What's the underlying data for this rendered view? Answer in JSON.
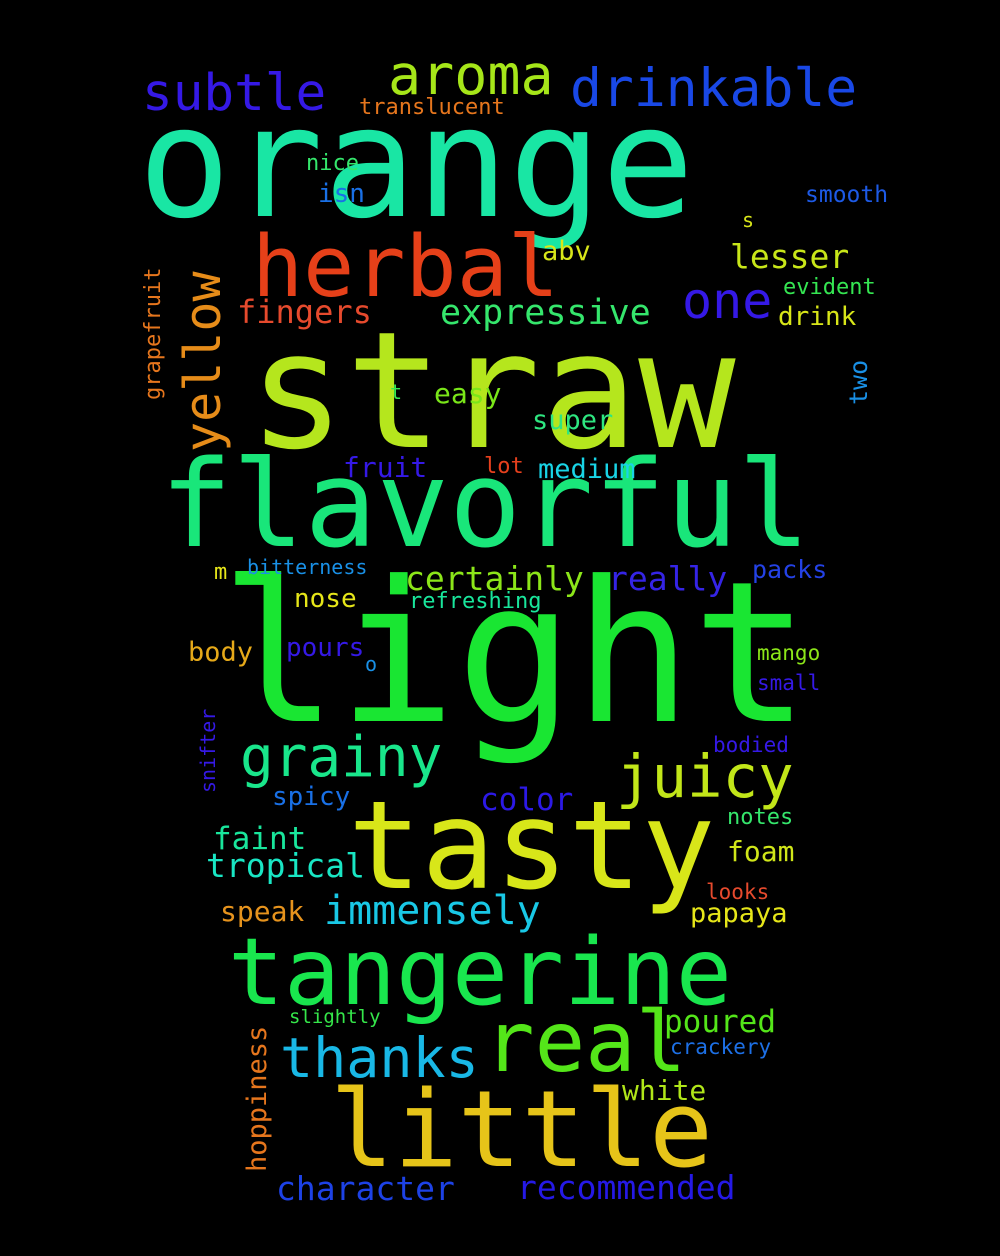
{
  "background": "#000000",
  "words": [
    {
      "text": "straw",
      "color": "#b5e61d"
    },
    {
      "text": "orange",
      "color": "#19e6a4"
    },
    {
      "text": "light",
      "color": "#19e632"
    },
    {
      "text": "flavorful",
      "color": "#19e67a"
    },
    {
      "text": "tasty",
      "color": "#d8e619"
    },
    {
      "text": "tangerine",
      "color": "#19e64e"
    },
    {
      "text": "little",
      "color": "#e6c419"
    },
    {
      "text": "herbal",
      "color": "#e64019"
    },
    {
      "text": "real",
      "color": "#54e619"
    },
    {
      "text": "aroma",
      "color": "#a6e619"
    },
    {
      "text": "drinkable",
      "color": "#1948e6"
    },
    {
      "text": "subtle",
      "color": "#3519e6"
    },
    {
      "text": "juicy",
      "color": "#c2e619"
    },
    {
      "text": "grainy",
      "color": "#19e68b"
    },
    {
      "text": "yellow",
      "color": "#e68c19"
    },
    {
      "text": "thanks",
      "color": "#19b8e6"
    },
    {
      "text": "one",
      "color": "#3519e6"
    },
    {
      "text": "immensely",
      "color": "#19c8e6"
    },
    {
      "text": "expressive",
      "color": "#35e66c"
    },
    {
      "text": "fingers",
      "color": "#e64a2d"
    },
    {
      "text": "lesser",
      "color": "#c8e619"
    },
    {
      "text": "certainly",
      "color": "#8ce619"
    },
    {
      "text": "really",
      "color": "#3524e6"
    },
    {
      "text": "tropical",
      "color": "#19e6c4"
    },
    {
      "text": "character",
      "color": "#1d42e6"
    },
    {
      "text": "recommended",
      "color": "#2519e6"
    },
    {
      "text": "poured",
      "color": "#54e619"
    },
    {
      "text": "color",
      "color": "#2c19e6"
    },
    {
      "text": "faint",
      "color": "#19e69c"
    },
    {
      "text": "foam",
      "color": "#d0e619"
    },
    {
      "text": "speak",
      "color": "#e6931d"
    },
    {
      "text": "papaya",
      "color": "#e6e619"
    },
    {
      "text": "white",
      "color": "#b0e619"
    },
    {
      "text": "fruit",
      "color": "#3519e6"
    },
    {
      "text": "medium",
      "color": "#19d4e6"
    },
    {
      "text": "easy",
      "color": "#7ae619"
    },
    {
      "text": "super",
      "color": "#2ee680"
    },
    {
      "text": "drink",
      "color": "#d8e619"
    },
    {
      "text": "abv",
      "color": "#d8e619"
    },
    {
      "text": "nose",
      "color": "#e6e619"
    },
    {
      "text": "body",
      "color": "#e6a919"
    },
    {
      "text": "pours",
      "color": "#3519e6"
    },
    {
      "text": "spicy",
      "color": "#1970e6"
    },
    {
      "text": "packs",
      "color": "#2442e6"
    },
    {
      "text": "isn",
      "color": "#1970e6"
    },
    {
      "text": "nice",
      "color": "#35e66c"
    },
    {
      "text": "smooth",
      "color": "#1d5ae6"
    },
    {
      "text": "evident",
      "color": "#35e652"
    },
    {
      "text": "translucent",
      "color": "#e6761d"
    },
    {
      "text": "refreshing",
      "color": "#19e69c"
    },
    {
      "text": "bitterness",
      "color": "#1990e6"
    },
    {
      "text": "mango",
      "color": "#8ce619"
    },
    {
      "text": "small",
      "color": "#3519e6"
    },
    {
      "text": "bodied",
      "color": "#3519e6"
    },
    {
      "text": "notes",
      "color": "#35e66c"
    },
    {
      "text": "looks",
      "color": "#e64a2d"
    },
    {
      "text": "crackery",
      "color": "#1d70e6"
    },
    {
      "text": "slightly",
      "color": "#35e64a"
    },
    {
      "text": "lot",
      "color": "#e6401d"
    },
    {
      "text": "grapefruit",
      "color": "#e6761d"
    },
    {
      "text": "hoppiness",
      "color": "#e6761d"
    },
    {
      "text": "snifter",
      "color": "#3519e6"
    },
    {
      "text": "two",
      "color": "#1990e6"
    },
    {
      "text": "s",
      "color": "#d8e619"
    },
    {
      "text": "t",
      "color": "#35e652"
    },
    {
      "text": "m",
      "color": "#e6e619"
    },
    {
      "text": "o",
      "color": "#1990e6"
    }
  ]
}
